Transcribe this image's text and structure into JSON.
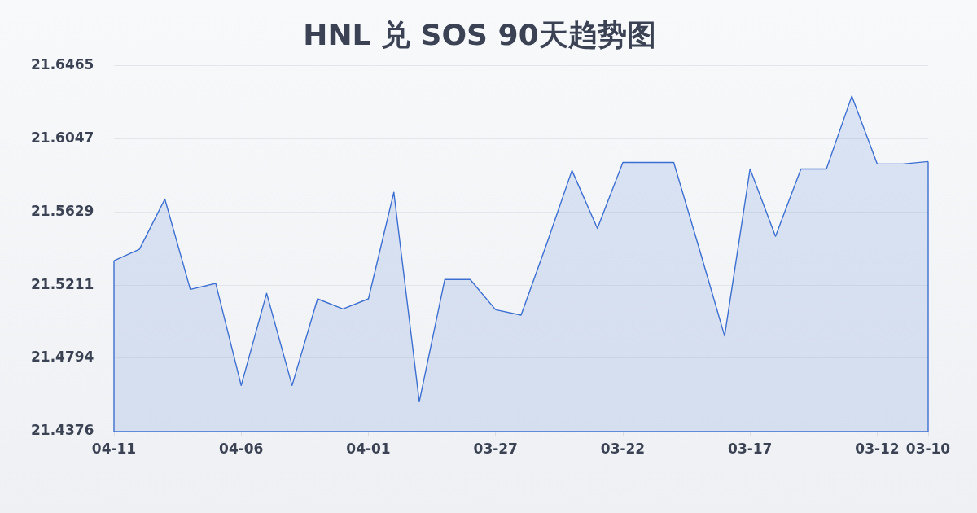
{
  "chart_data": {
    "type": "area",
    "title": "HNL 兑 SOS 90天趋势图",
    "categories": [
      "04-11",
      null,
      null,
      null,
      null,
      "04-06",
      null,
      null,
      null,
      null,
      "04-01",
      null,
      null,
      null,
      null,
      "03-27",
      null,
      null,
      null,
      null,
      "03-22",
      null,
      null,
      null,
      null,
      "03-17",
      null,
      null,
      null,
      null,
      "03-12",
      null,
      "03-10"
    ],
    "values": [
      21.5351,
      21.5416,
      21.5702,
      21.5187,
      21.5221,
      21.4639,
      21.5165,
      21.4639,
      21.5133,
      21.5076,
      21.5133,
      21.5741,
      21.4546,
      21.5243,
      21.5243,
      21.5071,
      21.504,
      21.5444,
      21.5865,
      21.5535,
      21.5911,
      21.5911,
      21.5911,
      21.5421,
      21.4921,
      21.5874,
      21.549,
      21.5874,
      21.5874,
      21.629,
      21.5902,
      21.5902,
      21.5916
    ],
    "color": "#3c6fd1",
    "ylim": [
      21.4376,
      21.6465
    ],
    "yticks": [
      21.4376,
      21.4794,
      21.5211,
      21.5629,
      21.6047,
      21.6465
    ],
    "grid": "y"
  }
}
